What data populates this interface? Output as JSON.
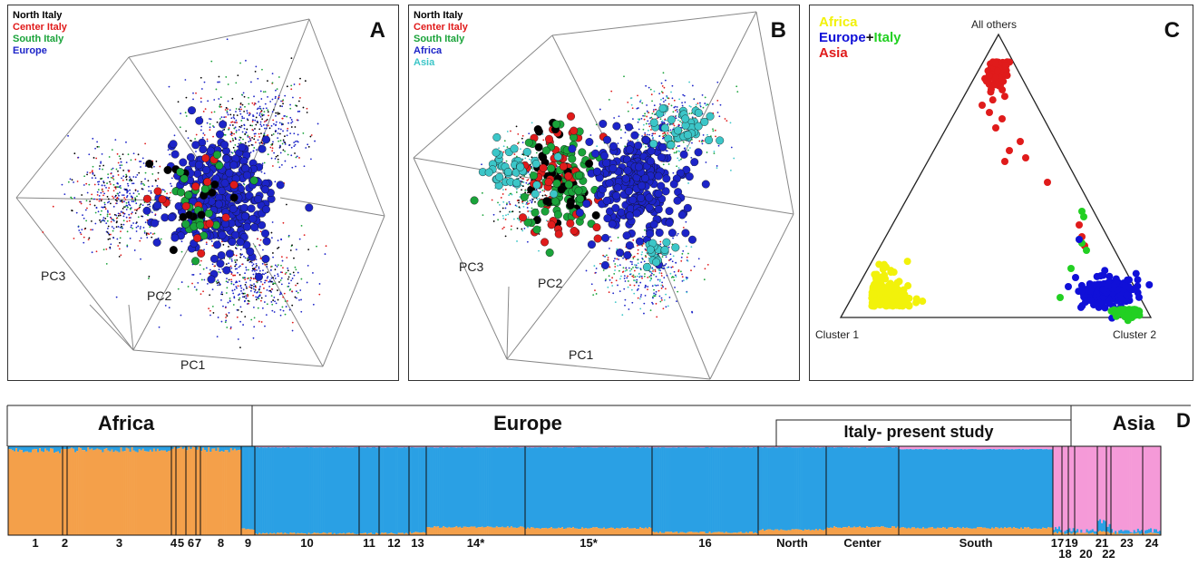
{
  "panelA": {
    "letter": "A",
    "legend": [
      {
        "label": "North Italy",
        "color": "#000000"
      },
      {
        "label": "Center Italy",
        "color": "#e01b1b"
      },
      {
        "label": "South Italy",
        "color": "#1aa33a"
      },
      {
        "label": "Europe",
        "color": "#1c24c8"
      }
    ],
    "axes": {
      "pc1": "PC1",
      "pc2": "PC2",
      "pc3": "PC3"
    }
  },
  "panelB": {
    "letter": "B",
    "legend": [
      {
        "label": "North Italy",
        "color": "#000000"
      },
      {
        "label": "Center Italy",
        "color": "#e01b1b"
      },
      {
        "label": "South Italy",
        "color": "#1aa33a"
      },
      {
        "label": "Africa",
        "color": "#1c24c8"
      },
      {
        "label": "Asia",
        "color": "#3cc6c8"
      }
    ],
    "axes": {
      "pc1": "PC1",
      "pc2": "PC2",
      "pc3": "PC3"
    }
  },
  "panelC": {
    "letter": "C",
    "legend": [
      {
        "parts": [
          {
            "label": "Africa",
            "color": "#f2f20a"
          }
        ]
      },
      {
        "parts": [
          {
            "label": "Europe",
            "color": "#1010d8"
          },
          {
            "label": "+",
            "color": "#111111"
          },
          {
            "label": "Italy",
            "color": "#22d022"
          }
        ]
      },
      {
        "parts": [
          {
            "label": "Asia",
            "color": "#e01b1b"
          }
        ]
      }
    ],
    "corners": {
      "top": "All others",
      "left": "Cluster 1",
      "right": "Cluster 2"
    }
  },
  "chart_data": [
    {
      "type": "scatter",
      "panel": "A",
      "series": [
        {
          "name": "North Italy"
        },
        {
          "name": "Center Italy"
        },
        {
          "name": "South Italy"
        },
        {
          "name": "Europe"
        }
      ]
    },
    {
      "type": "scatter",
      "panel": "B",
      "series": [
        {
          "name": "North Italy"
        },
        {
          "name": "Center Italy"
        },
        {
          "name": "South Italy"
        },
        {
          "name": "Africa"
        },
        {
          "name": "Asia"
        }
      ]
    },
    {
      "type": "scatter",
      "panel": "C",
      "series": [
        {
          "name": "Africa"
        },
        {
          "name": "Europe+Italy"
        },
        {
          "name": "Asia"
        }
      ]
    },
    {
      "type": "bar",
      "panel": "D",
      "letter": "D",
      "regions": [
        "Africa",
        "Europe",
        "Italy- present study",
        "Asia"
      ],
      "colors": {
        "africa": "#f4a04a",
        "europe": "#2aa0e4",
        "asia": "#f59ad8"
      },
      "groups": [
        {
          "label": "1",
          "africa": 0.95,
          "europe": 0.05,
          "asia": 0.0
        },
        {
          "label": "2",
          "africa": 0.97,
          "europe": 0.03,
          "asia": 0.0
        },
        {
          "label": "3",
          "africa": 0.96,
          "europe": 0.04,
          "asia": 0.0
        },
        {
          "label": "4",
          "africa": 0.97,
          "europe": 0.03,
          "asia": 0.0
        },
        {
          "label": "5",
          "africa": 0.98,
          "europe": 0.02,
          "asia": 0.0
        },
        {
          "label": "6",
          "africa": 0.98,
          "europe": 0.02,
          "asia": 0.0
        },
        {
          "label": "7",
          "africa": 0.97,
          "europe": 0.03,
          "asia": 0.0
        },
        {
          "label": "8",
          "africa": 0.96,
          "europe": 0.04,
          "asia": 0.0
        },
        {
          "label": "9",
          "africa": 0.06,
          "europe": 0.94,
          "asia": 0.0
        },
        {
          "label": "10",
          "africa": 0.01,
          "europe": 0.98,
          "asia": 0.01
        },
        {
          "label": "11",
          "africa": 0.01,
          "europe": 0.98,
          "asia": 0.01
        },
        {
          "label": "12",
          "africa": 0.01,
          "europe": 0.98,
          "asia": 0.01
        },
        {
          "label": "13",
          "africa": 0.02,
          "europe": 0.97,
          "asia": 0.01
        },
        {
          "label": "14*",
          "africa": 0.08,
          "europe": 0.91,
          "asia": 0.01
        },
        {
          "label": "15*",
          "africa": 0.07,
          "europe": 0.92,
          "asia": 0.01
        },
        {
          "label": "16",
          "africa": 0.02,
          "europe": 0.97,
          "asia": 0.01
        },
        {
          "label": "North",
          "africa": 0.05,
          "europe": 0.94,
          "asia": 0.01
        },
        {
          "label": "Center",
          "africa": 0.08,
          "europe": 0.91,
          "asia": 0.01
        },
        {
          "label": "South",
          "africa": 0.07,
          "europe": 0.9,
          "asia": 0.03
        },
        {
          "label": "17",
          "africa": 0.02,
          "europe": 0.05,
          "asia": 0.93
        },
        {
          "label": "18",
          "africa": 0.01,
          "europe": 0.04,
          "asia": 0.95
        },
        {
          "label": "19",
          "africa": 0.01,
          "europe": 0.04,
          "asia": 0.95
        },
        {
          "label": "20",
          "africa": 0.01,
          "europe": 0.03,
          "asia": 0.96
        },
        {
          "label": "21",
          "africa": 0.03,
          "europe": 0.12,
          "asia": 0.85
        },
        {
          "label": "22",
          "africa": 0.02,
          "europe": 0.1,
          "asia": 0.88
        },
        {
          "label": "23",
          "africa": 0.01,
          "europe": 0.04,
          "asia": 0.95
        },
        {
          "label": "24",
          "africa": 0.01,
          "europe": 0.04,
          "asia": 0.95
        }
      ]
    }
  ]
}
